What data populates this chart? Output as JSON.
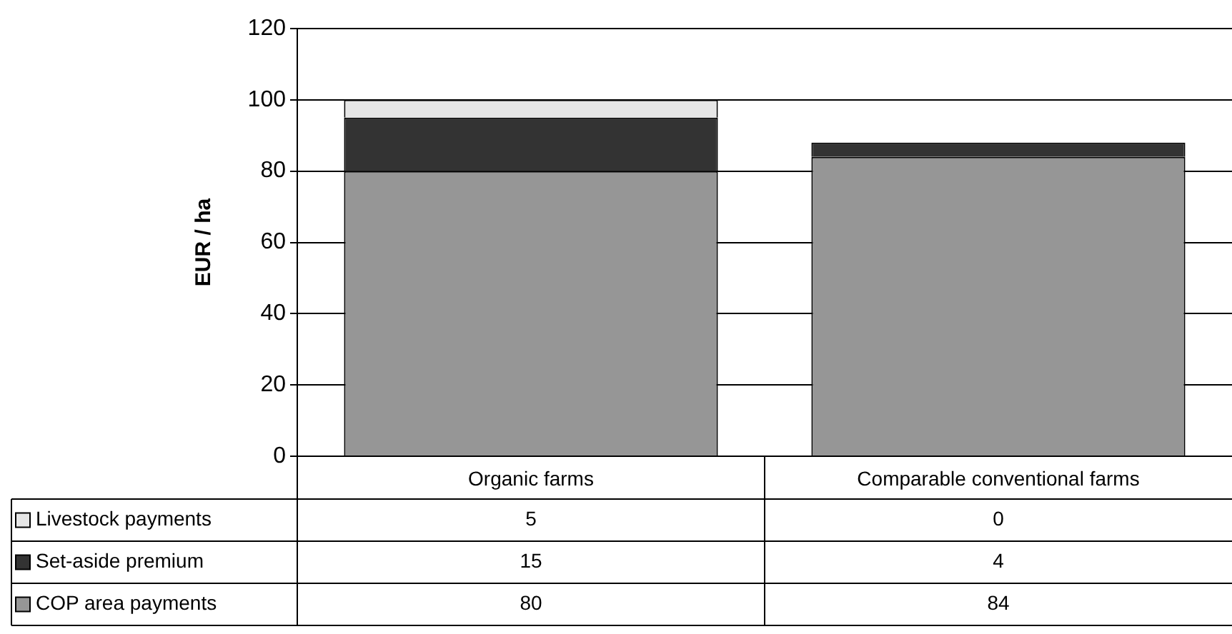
{
  "chart_data": {
    "type": "bar",
    "stacked": true,
    "ylabel": "EUR / ha",
    "categories": [
      "Organic farms",
      "Comparable conventional farms"
    ],
    "series": [
      {
        "name": "COP area payments",
        "color": "#969696",
        "values": [
          80,
          84
        ]
      },
      {
        "name": "Set-aside premium",
        "color": "#333333",
        "values": [
          15,
          4
        ]
      },
      {
        "name": "Livestock payments",
        "color": "#e6e6e6",
        "values": [
          5,
          0
        ]
      }
    ],
    "ylim": [
      0,
      120
    ],
    "yticks": [
      0,
      20,
      40,
      60,
      80,
      100,
      120
    ],
    "grid": "y",
    "legend": "bottom",
    "data_labels": true
  }
}
